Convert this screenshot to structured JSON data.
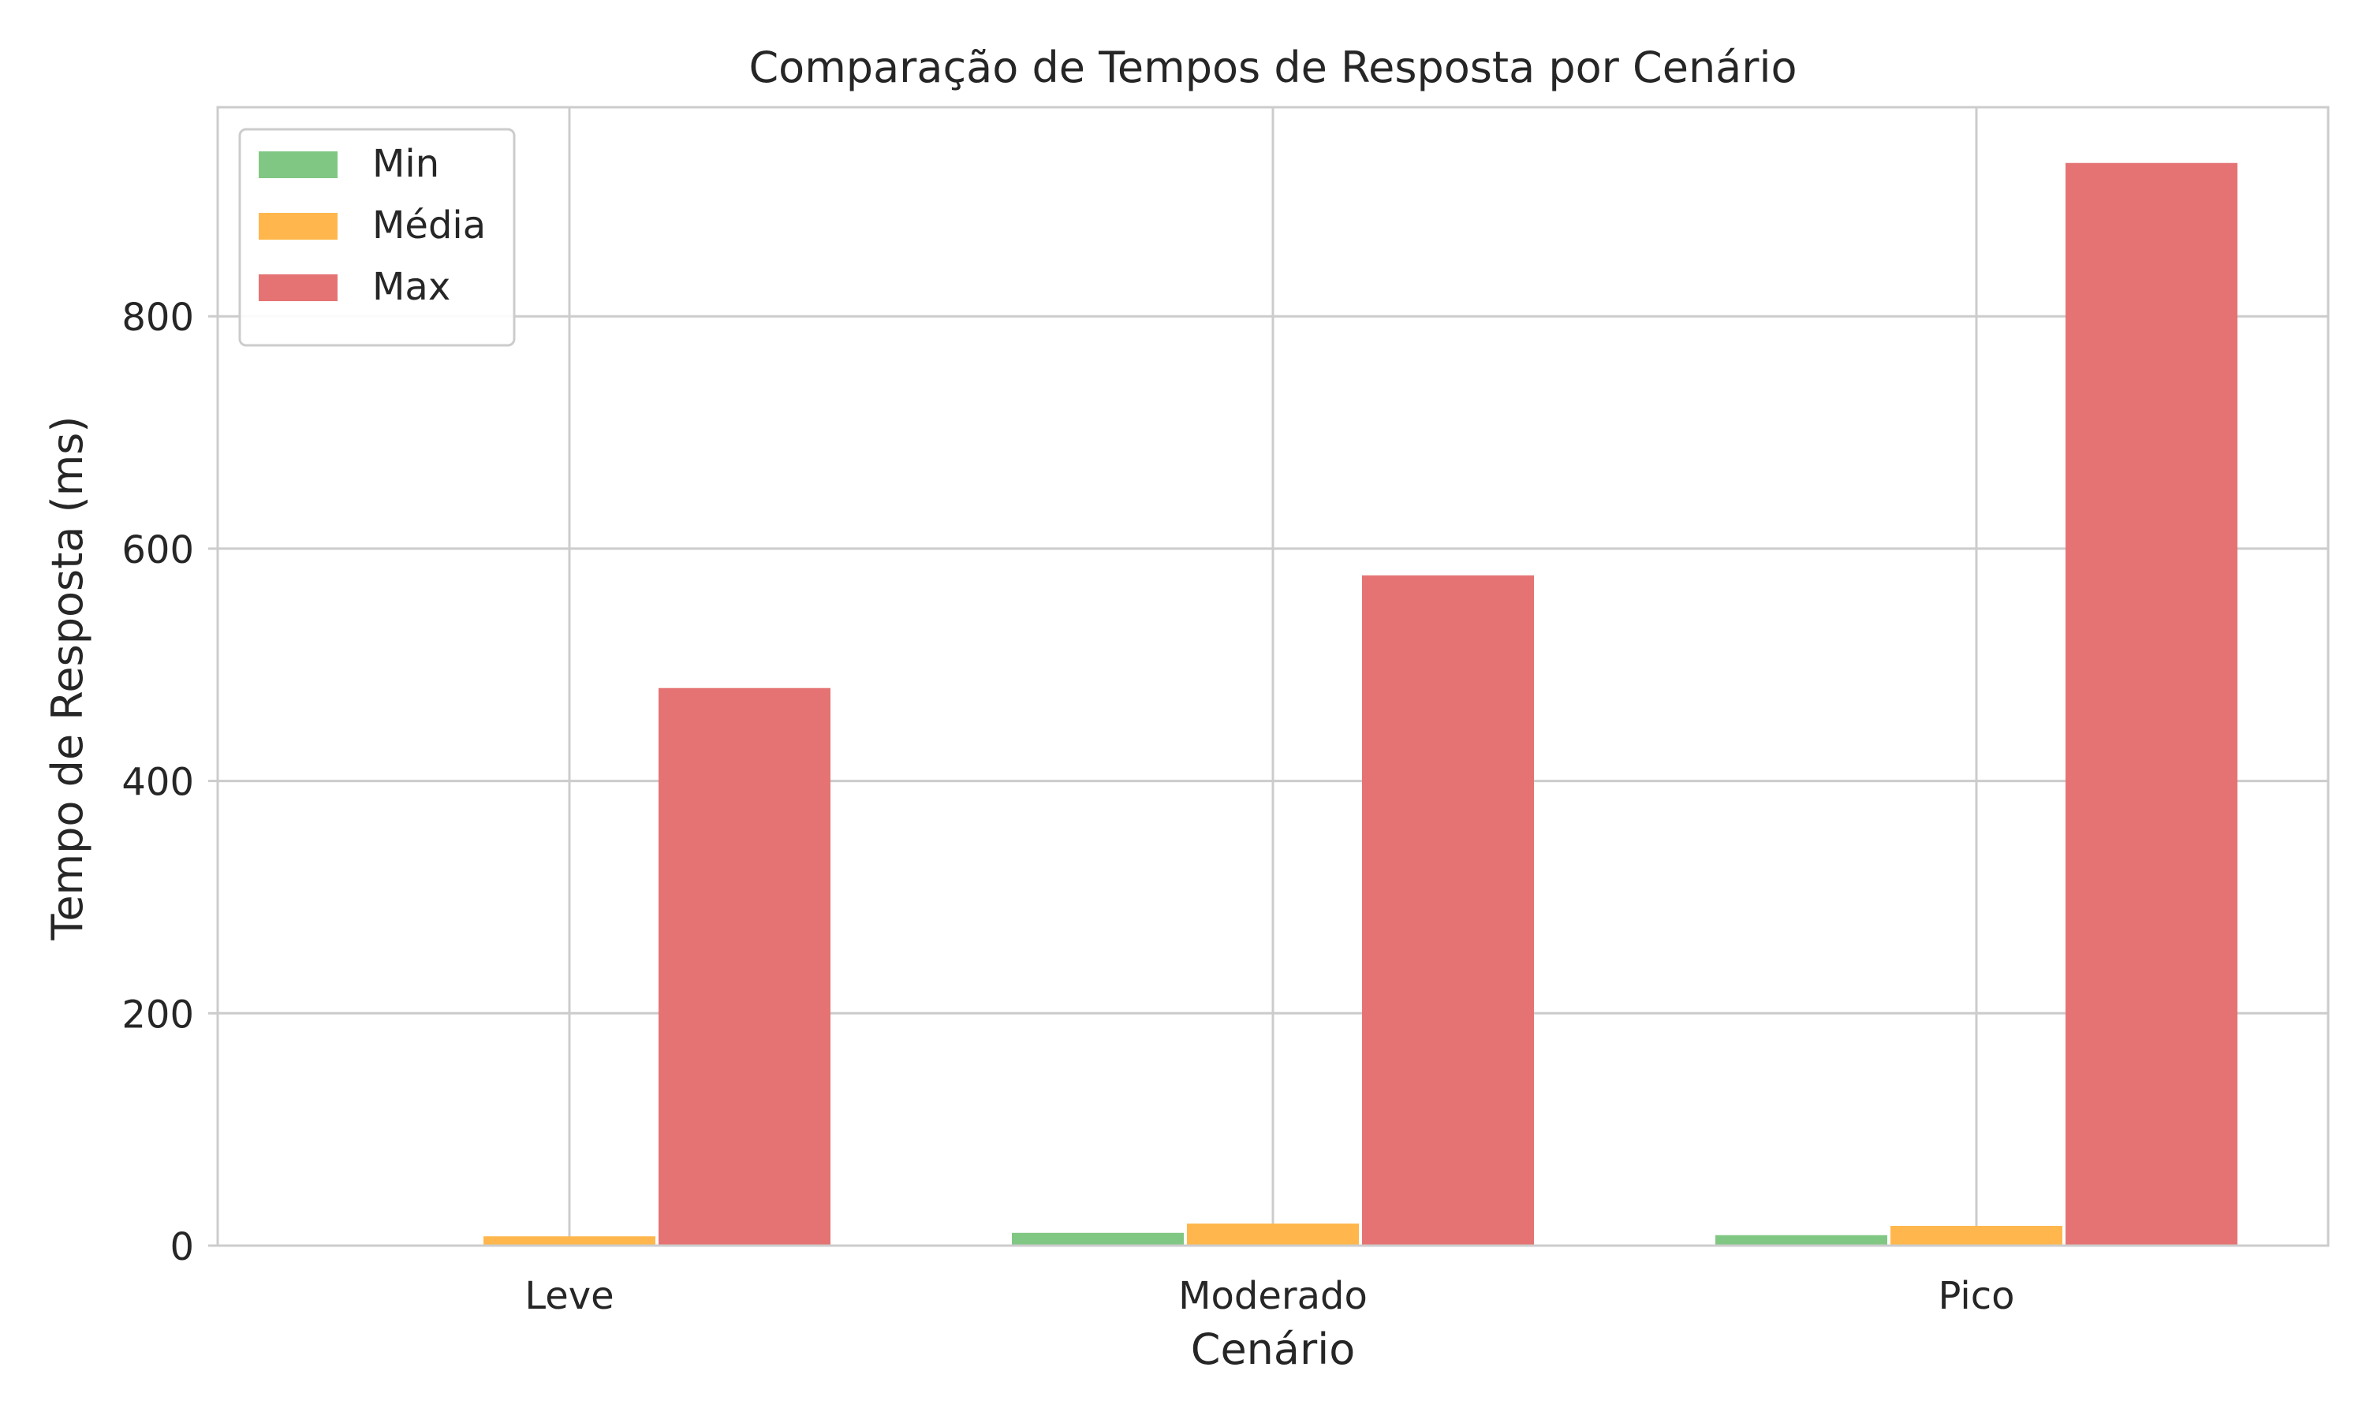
{
  "chart_data": {
    "type": "bar",
    "title": "Comparação de Tempos de Resposta por Cenário",
    "xlabel": "Cenário",
    "ylabel": "Tempo de Resposta (ms)",
    "categories": [
      "Leve",
      "Moderado",
      "Pico"
    ],
    "series": [
      {
        "name": "Min",
        "color": "#81c784",
        "values": [
          1,
          11,
          9
        ]
      },
      {
        "name": "Média",
        "color": "#ffb74d",
        "values": [
          8,
          19,
          17
        ]
      },
      {
        "name": "Max",
        "color": "#e57373",
        "values": [
          480,
          577,
          932
        ]
      }
    ],
    "ylim": [
      0,
      980
    ],
    "yticks": [
      0,
      200,
      400,
      600,
      800
    ],
    "grid": true,
    "legend_position": "top-left",
    "colors": {
      "grid": "#cccccc",
      "spine": "#cccccc",
      "text": "#262626"
    }
  }
}
